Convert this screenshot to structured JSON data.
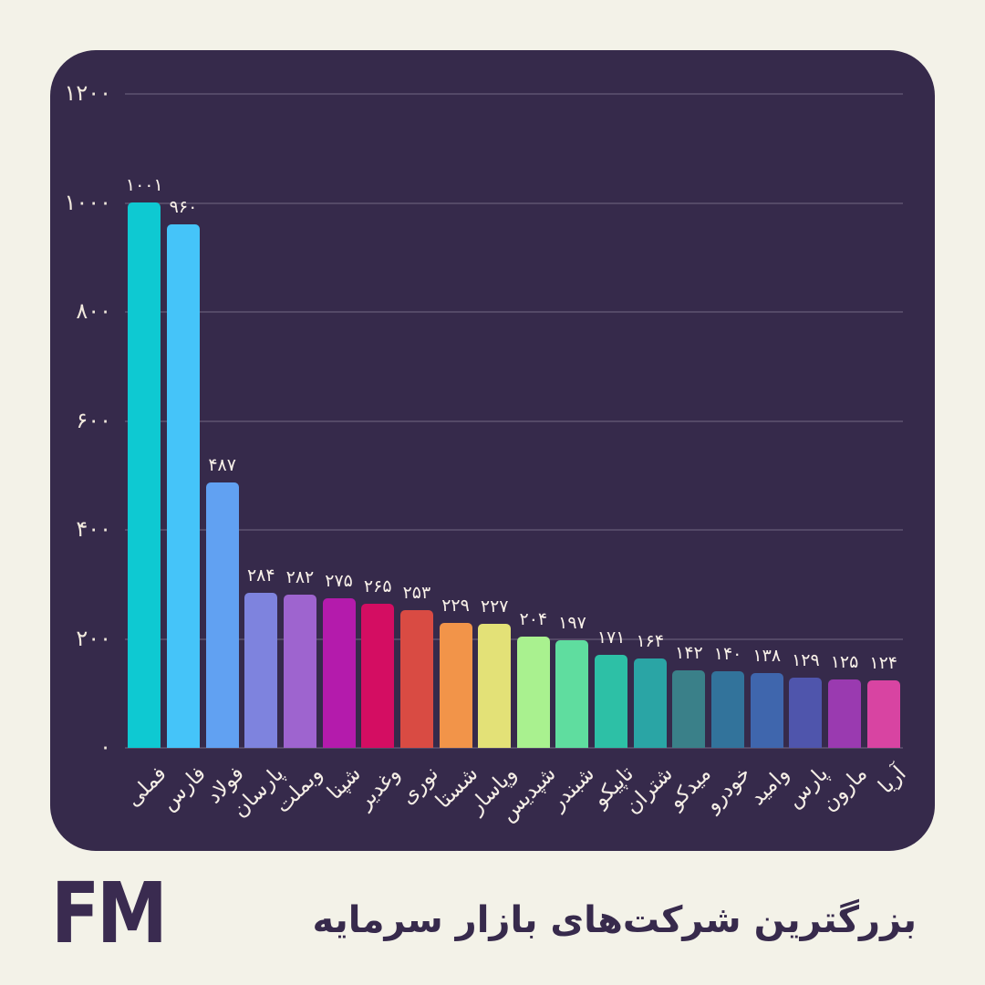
{
  "page": {
    "background": "#f3f2e8"
  },
  "panel": {
    "background": "#362a4b",
    "grid_color": "rgba(240,235,255,0.16)",
    "tick_text_color": "#f1e9dd",
    "value_text_color": "#f9f1e9"
  },
  "chart_data": {
    "type": "bar",
    "title": "بزرگترین شرکت‌های بازار سرمایه",
    "xlabel": "",
    "ylabel": "",
    "grid": "horizontal",
    "legend": "none",
    "ylim": [
      0,
      1200
    ],
    "yticks": [
      0,
      200,
      400,
      600,
      800,
      1000,
      1200
    ],
    "ytick_labels_fa": [
      "۰",
      "۲۰۰",
      "۴۰۰",
      "۶۰۰",
      "۸۰۰",
      "۱۰۰۰",
      "۱۲۰۰"
    ],
    "categories": [
      "فملی",
      "فارس",
      "فولاد",
      "پارسان",
      "وبملت",
      "شپنا",
      "وغدیر",
      "نوری",
      "شستا",
      "وپاسار",
      "شپدیس",
      "شبندر",
      "تاپیکو",
      "شتران",
      "میدکو",
      "خودرو",
      "وامید",
      "پارس",
      "مارون",
      "آریا"
    ],
    "values": [
      1001,
      960,
      487,
      284,
      282,
      275,
      265,
      253,
      229,
      227,
      204,
      197,
      171,
      164,
      142,
      140,
      138,
      129,
      125,
      124
    ],
    "value_labels_fa": [
      "۱۰۰۱",
      "۹۶۰",
      "۴۸۷",
      "۲۸۴",
      "۲۸۲",
      "۲۷۵",
      "۲۶۵",
      "۲۵۳",
      "۲۲۹",
      "۲۲۷",
      "۲۰۴",
      "۱۹۷",
      "۱۷۱",
      "۱۶۴",
      "۱۴۲",
      "۱۴۰",
      "۱۳۸",
      "۱۲۹",
      "۱۲۵",
      "۱۲۴"
    ],
    "bar_colors": [
      "#0ec9d2",
      "#45c4f9",
      "#61a1f2",
      "#7e83de",
      "#9e64cf",
      "#b41bac",
      "#d40d62",
      "#d94b43",
      "#f29449",
      "#e3e177",
      "#a9f18f",
      "#5fdd9f",
      "#2dc0a6",
      "#2aa5a5",
      "#3a8089",
      "#32739b",
      "#3f66ad",
      "#4f55ac",
      "#9a3ab0",
      "#d844a2"
    ]
  },
  "footer": {
    "logo": "FM",
    "title": "بزرگترین شرکت‌های بازار سرمایه",
    "logo_color": "#3a2b50",
    "title_color": "#372a4c"
  }
}
